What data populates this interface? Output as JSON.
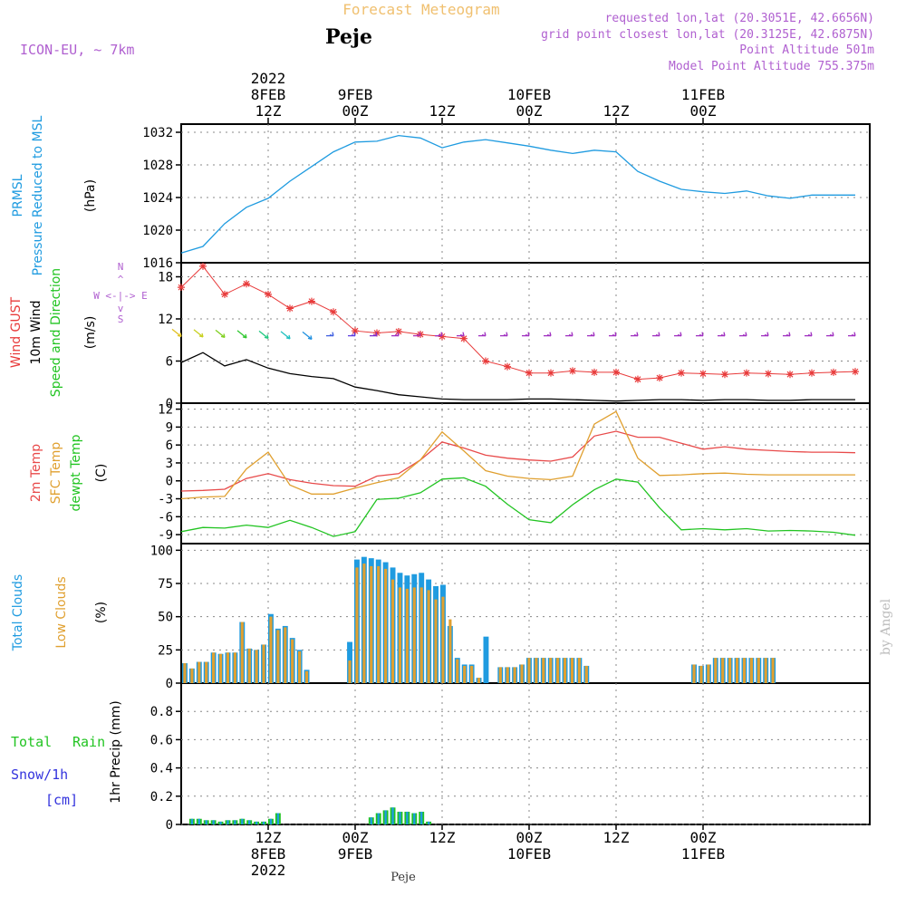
{
  "header": {
    "title": "Forecast Meteogram",
    "location": "Peje",
    "model": "ICON-EU, ~ 7km",
    "requested": "requested lon,lat (20.3051E, 42.6656N)",
    "gridpoint": "grid point closest lon,lat (20.3125E, 42.6875N)",
    "point_alt": "Point Altitude 501m",
    "model_alt": "Model Point Altitude 755.375m",
    "footer_location": "Peje",
    "credit": "by Angel"
  },
  "colors": {
    "pressure": "#1f9be0",
    "gust": "#e83a3a",
    "wind": "#000000",
    "t2m": "#e84a4a",
    "tsfc": "#e0a030",
    "dew": "#22c422",
    "total_clouds": "#1f9be0",
    "low_clouds": "#e0a030",
    "rain": "#22c422",
    "snow": "#3333dd",
    "purple": "#b060d0",
    "title": "#f0c070"
  },
  "chart_data": [
    {
      "type": "line",
      "title": "PRMSL Pressure Reduced to MSL",
      "label_lines": [
        "PRMSL",
        "Pressure Reduced to MSL"
      ],
      "unit": "(hPa)",
      "ylim": [
        1016,
        1033
      ],
      "yticks": [
        1016,
        1020,
        1024,
        1028,
        1032
      ],
      "x_hours": [
        0,
        3,
        6,
        9,
        12,
        15,
        18,
        21,
        24,
        27,
        30,
        33,
        36,
        39,
        42,
        45,
        48,
        51,
        54,
        57,
        60,
        63,
        66,
        69,
        72,
        75,
        78,
        81,
        84,
        87,
        90,
        93
      ],
      "series": [
        {
          "name": "PRMSL",
          "values": [
            1017.2,
            1018.0,
            1020.8,
            1022.8,
            1023.9,
            1026.0,
            1027.8,
            1029.6,
            1030.8,
            1030.9,
            1031.6,
            1031.3,
            1030.1,
            1030.8,
            1031.1,
            1030.7,
            1030.3,
            1029.8,
            1029.4,
            1029.8,
            1029.6,
            1027.2,
            1026.0,
            1025.0,
            1024.7,
            1024.5,
            1024.8,
            1024.2,
            1023.9,
            1024.3,
            1024.3,
            1024.3
          ]
        }
      ]
    },
    {
      "type": "line",
      "title": "Wind GUST 10m Wind Speed and Direction",
      "label_lines": [
        "Wind GUST",
        "10m Wind",
        "Speed and Direction"
      ],
      "unit": "(m/s)",
      "ylim": [
        0,
        20
      ],
      "yticks": [
        0,
        6,
        12,
        18
      ],
      "compass": [
        "N",
        "W <-|-> E",
        "S"
      ],
      "x_hours": [
        0,
        3,
        6,
        9,
        12,
        15,
        18,
        21,
        24,
        27,
        30,
        33,
        36,
        39,
        42,
        45,
        48,
        51,
        54,
        57,
        60,
        63,
        66,
        69,
        72,
        75,
        78,
        81,
        84,
        87,
        90,
        93
      ],
      "series": [
        {
          "name": "Wind GUST",
          "values": [
            16.5,
            19.5,
            15.5,
            17.0,
            15.5,
            13.5,
            14.5,
            13.0,
            10.3,
            10.0,
            10.2,
            9.8,
            9.5,
            9.2,
            6.0,
            5.2,
            4.3,
            4.3,
            4.6,
            4.4,
            4.4,
            3.4,
            3.6,
            4.3,
            4.2,
            4.1,
            4.3,
            4.2,
            4.1,
            4.3,
            4.4,
            4.5
          ]
        },
        {
          "name": "10m Wind",
          "values": [
            5.8,
            7.2,
            5.3,
            6.2,
            5.0,
            4.2,
            3.8,
            3.5,
            2.3,
            1.8,
            1.2,
            0.9,
            0.6,
            0.5,
            0.5,
            0.5,
            0.6,
            0.6,
            0.5,
            0.4,
            0.3,
            0.4,
            0.5,
            0.5,
            0.4,
            0.5,
            0.5,
            0.4,
            0.4,
            0.5,
            0.5,
            0.5
          ]
        }
      ]
    },
    {
      "type": "line",
      "title": "2m Temp SFC Temp dewpt Temp",
      "label_lines": [
        "2m Temp",
        "SFC Temp",
        "dewpt Temp"
      ],
      "unit": "(C)",
      "ylim": [
        -10.5,
        13
      ],
      "yticks": [
        -9,
        -6,
        -3,
        0,
        3,
        6,
        9,
        12
      ],
      "x_hours": [
        0,
        3,
        6,
        9,
        12,
        15,
        18,
        21,
        24,
        27,
        30,
        33,
        36,
        39,
        42,
        45,
        48,
        51,
        54,
        57,
        60,
        63,
        66,
        69,
        72,
        75,
        78,
        81,
        84,
        87,
        90,
        93
      ],
      "series": [
        {
          "name": "2m Temp",
          "values": [
            -1.7,
            -1.6,
            -1.4,
            0.4,
            1.2,
            0.2,
            -0.4,
            -0.8,
            -0.9,
            0.8,
            1.2,
            3.5,
            6.5,
            5.5,
            4.3,
            3.8,
            3.5,
            3.3,
            4.0,
            7.5,
            8.3,
            7.3,
            7.3,
            6.3,
            5.3,
            5.7,
            5.3,
            5.1,
            4.9,
            4.8,
            4.8,
            4.7
          ]
        },
        {
          "name": "SFC Temp",
          "values": [
            -3.0,
            -2.7,
            -2.6,
            2.0,
            4.8,
            -0.7,
            -2.2,
            -2.2,
            -1.2,
            -0.3,
            0.5,
            3.5,
            8.2,
            5.0,
            1.7,
            0.8,
            0.4,
            0.2,
            0.8,
            9.5,
            11.6,
            3.8,
            0.9,
            1.0,
            1.2,
            1.3,
            1.1,
            1.0,
            1.0,
            1.0,
            1.0,
            1.0
          ]
        },
        {
          "name": "dewpt Temp",
          "values": [
            -8.5,
            -7.8,
            -7.9,
            -7.4,
            -7.8,
            -6.6,
            -7.8,
            -9.3,
            -8.5,
            -3.1,
            -2.9,
            -2.0,
            0.3,
            0.5,
            -0.9,
            -3.9,
            -6.5,
            -7.0,
            -4.0,
            -1.5,
            0.3,
            -0.2,
            -4.5,
            -8.2,
            -8.0,
            -8.2,
            -8.0,
            -8.4,
            -8.3,
            -8.4,
            -8.6,
            -9.1
          ]
        }
      ]
    },
    {
      "type": "bar",
      "title": "Total Clouds Low Clouds",
      "label_lines": [
        "Total Clouds",
        "Low Clouds"
      ],
      "unit": "(%)",
      "ylim": [
        0,
        105
      ],
      "yticks": [
        0,
        25,
        50,
        75,
        100
      ],
      "x_hours": [
        0,
        1,
        2,
        3,
        4,
        5,
        6,
        7,
        8,
        9,
        10,
        11,
        12,
        13,
        14,
        15,
        16,
        17,
        18,
        19,
        20,
        21,
        22,
        23,
        24,
        25,
        26,
        27,
        28,
        29,
        30,
        31,
        32,
        33,
        34,
        35,
        36,
        37,
        38,
        39,
        40,
        41,
        42,
        43,
        44,
        45,
        46,
        47,
        48,
        49,
        50,
        51,
        52,
        53,
        54,
        55,
        56,
        57,
        58,
        59,
        60,
        61,
        62,
        63,
        64,
        65,
        66,
        67,
        68,
        69,
        70,
        71,
        72,
        73,
        74,
        75,
        76,
        77,
        78,
        79,
        80,
        81,
        82,
        83,
        84,
        85,
        86,
        87,
        88,
        89,
        90,
        91,
        92,
        93,
        94,
        95
      ],
      "series": [
        {
          "name": "Total Clouds",
          "values": [
            15,
            11,
            16,
            16,
            23,
            22,
            23,
            23,
            46,
            26,
            25,
            29,
            52,
            41,
            43,
            34,
            25,
            10,
            0,
            0,
            0,
            0,
            0,
            31,
            93,
            95,
            94,
            93,
            91,
            87,
            83,
            81,
            82,
            83,
            78,
            73,
            74,
            43,
            19,
            14,
            14,
            4,
            35,
            0,
            12,
            12,
            12,
            14,
            19,
            19,
            19,
            19,
            19,
            19,
            19,
            19,
            13,
            0,
            0,
            0,
            0,
            0,
            0,
            0,
            0,
            0,
            0,
            0,
            0,
            0,
            0,
            14,
            13,
            14,
            19,
            19,
            19,
            19,
            19,
            19,
            19,
            19,
            19,
            0,
            0,
            0,
            0,
            0,
            0,
            0,
            0,
            0,
            0,
            0,
            0,
            0
          ]
        },
        {
          "name": "Low Clouds",
          "values": [
            15,
            11,
            16,
            16,
            23,
            22,
            23,
            23,
            46,
            26,
            25,
            29,
            50,
            40,
            42,
            33,
            24,
            9,
            0,
            0,
            0,
            0,
            0,
            17,
            87,
            90,
            88,
            88,
            86,
            78,
            72,
            71,
            72,
            72,
            70,
            63,
            65,
            48,
            18,
            13,
            13,
            4,
            0,
            0,
            12,
            12,
            12,
            14,
            19,
            19,
            19,
            19,
            19,
            19,
            19,
            19,
            13,
            0,
            0,
            0,
            0,
            0,
            0,
            0,
            0,
            0,
            0,
            0,
            0,
            0,
            0,
            14,
            13,
            14,
            19,
            19,
            19,
            19,
            19,
            19,
            19,
            19,
            19,
            0,
            0,
            0,
            0,
            0,
            0,
            0,
            0,
            0,
            0,
            0,
            0,
            0
          ]
        }
      ]
    },
    {
      "type": "bar",
      "title": "Total Rain Snow/1h [cm] 1hr Precip (mm)",
      "label_lines": [
        "1hr Precip (mm)"
      ],
      "legend": [
        "Total",
        "Rain",
        "Snow/1h",
        "[cm]"
      ],
      "ylim": [
        0,
        1.0
      ],
      "yticks": [
        "0",
        "0.2",
        "0.4",
        "0.6",
        "0.8"
      ],
      "ytick_values": [
        0,
        0.2,
        0.4,
        0.6,
        0.8
      ],
      "x_hours": [
        1,
        2,
        3,
        4,
        5,
        6,
        7,
        8,
        9,
        10,
        11,
        12,
        13,
        14,
        15,
        16,
        17,
        18,
        19,
        20,
        21,
        22,
        23,
        24,
        25,
        26,
        27,
        28,
        29,
        30,
        31,
        32,
        33,
        34,
        35,
        36,
        37,
        38,
        39,
        40,
        41,
        42,
        43,
        44,
        45,
        46,
        47,
        48,
        49,
        50,
        51,
        52,
        53,
        54,
        55,
        56,
        57,
        58,
        59,
        60,
        61,
        62,
        63,
        64,
        65,
        66,
        67,
        68,
        69,
        70,
        71,
        72,
        73,
        74,
        75,
        76,
        77,
        78,
        79,
        80,
        81,
        82,
        83,
        84,
        85,
        86,
        87,
        88,
        89,
        90,
        91,
        92,
        93,
        94
      ],
      "series": [
        {
          "name": "Total",
          "values": [
            0.04,
            0.04,
            0.03,
            0.03,
            0.02,
            0.03,
            0.03,
            0.04,
            0.03,
            0.02,
            0.02,
            0.04,
            0.08,
            0,
            0,
            0,
            0,
            0,
            0,
            0,
            0,
            0,
            0,
            0,
            0,
            0.05,
            0.08,
            0.1,
            0.12,
            0.09,
            0.09,
            0.08,
            0.09,
            0.02,
            0,
            0,
            0,
            0,
            0,
            0,
            0,
            0,
            0,
            0,
            0,
            0,
            0,
            0,
            0,
            0,
            0,
            0,
            0,
            0,
            0,
            0,
            0,
            0,
            0,
            0,
            0,
            0,
            0,
            0,
            0,
            0,
            0,
            0,
            0,
            0,
            0,
            0,
            0,
            0,
            0,
            0,
            0,
            0,
            0,
            0,
            0,
            0,
            0,
            0,
            0,
            0,
            0,
            0,
            0,
            0,
            0,
            0,
            0,
            0
          ]
        },
        {
          "name": "Rain",
          "values": [
            0.04,
            0.04,
            0.03,
            0.03,
            0.02,
            0.03,
            0.03,
            0.04,
            0.03,
            0.02,
            0.02,
            0.04,
            0.08,
            0,
            0,
            0,
            0,
            0,
            0,
            0,
            0,
            0,
            0,
            0,
            0,
            0.05,
            0.08,
            0.1,
            0.12,
            0.09,
            0.09,
            0.08,
            0.09,
            0.02,
            0,
            0,
            0,
            0,
            0,
            0,
            0,
            0,
            0,
            0,
            0,
            0,
            0,
            0,
            0,
            0,
            0,
            0,
            0,
            0,
            0,
            0,
            0,
            0,
            0,
            0,
            0,
            0,
            0,
            0,
            0,
            0,
            0,
            0,
            0,
            0,
            0,
            0,
            0,
            0,
            0,
            0,
            0,
            0,
            0,
            0,
            0,
            0,
            0,
            0,
            0,
            0,
            0,
            0,
            0,
            0,
            0,
            0,
            0,
            0
          ]
        }
      ]
    }
  ],
  "time_axis": {
    "start_hour": 0,
    "end_hour": 95,
    "top_labels": [
      {
        "hour": 12,
        "lines": [
          "2022",
          "8FEB",
          "12Z"
        ]
      },
      {
        "hour": 24,
        "lines": [
          "9FEB",
          "00Z"
        ]
      },
      {
        "hour": 36,
        "lines": [
          "12Z"
        ]
      },
      {
        "hour": 48,
        "lines": [
          "10FEB",
          "00Z"
        ]
      },
      {
        "hour": 60,
        "lines": [
          "12Z"
        ]
      },
      {
        "hour": 72,
        "lines": [
          "11FEB",
          "00Z"
        ]
      }
    ],
    "bottom_labels": [
      {
        "hour": 12,
        "lines": [
          "12Z",
          "8FEB",
          "2022"
        ]
      },
      {
        "hour": 24,
        "lines": [
          "00Z",
          "9FEB"
        ]
      },
      {
        "hour": 36,
        "lines": [
          "12Z"
        ]
      },
      {
        "hour": 48,
        "lines": [
          "00Z",
          "10FEB"
        ]
      },
      {
        "hour": 60,
        "lines": [
          "12Z"
        ]
      },
      {
        "hour": 72,
        "lines": [
          "00Z",
          "11FEB"
        ]
      }
    ]
  }
}
